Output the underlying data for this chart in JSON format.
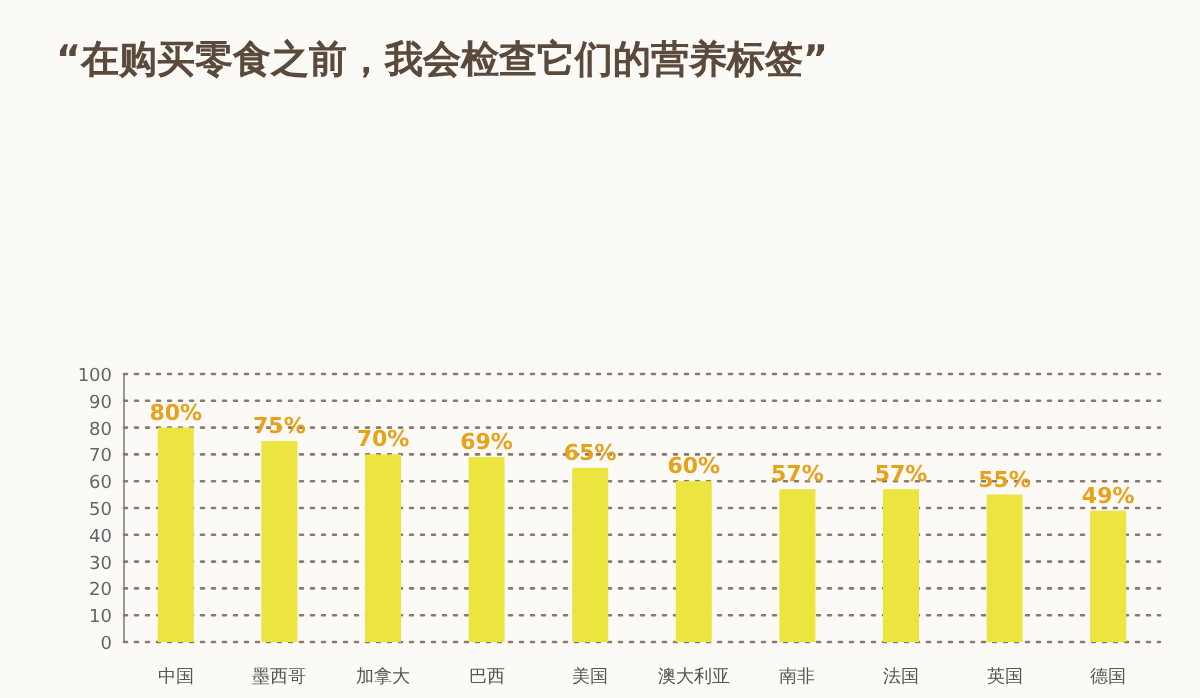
{
  "chart_data": {
    "type": "bar",
    "title": "“在购买零食之前，我会检查它们的营养标签”",
    "categories": [
      "中国",
      "墨西哥",
      "加拿大",
      "巴西",
      "美国",
      "澳大利亚",
      "南非",
      "法国",
      "英国",
      "德国"
    ],
    "values": [
      80,
      75,
      70,
      69,
      65,
      60,
      57,
      57,
      55,
      49
    ],
    "value_labels": [
      "80%",
      "75%",
      "70%",
      "69%",
      "65%",
      "60%",
      "57%",
      "57%",
      "55%",
      "49%"
    ],
    "color": "#ece43f",
    "ylim": [
      0,
      100
    ],
    "yticks": [
      0,
      10,
      20,
      30,
      40,
      50,
      60,
      70,
      80,
      90,
      100
    ],
    "grid": "y"
  }
}
